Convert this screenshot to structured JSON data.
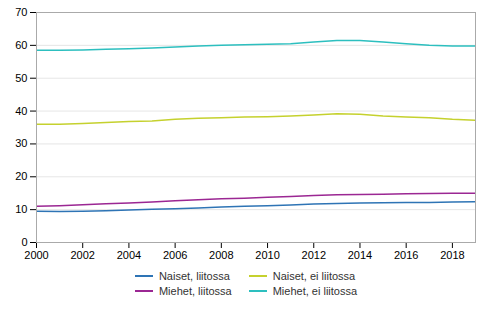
{
  "chart_data": {
    "type": "line",
    "x": [
      2000,
      2001,
      2002,
      2003,
      2004,
      2005,
      2006,
      2007,
      2008,
      2009,
      2010,
      2011,
      2012,
      2013,
      2014,
      2015,
      2016,
      2017,
      2018,
      2019
    ],
    "series": [
      {
        "name": "Naiset, liitossa",
        "color": "#2e74b5",
        "values": [
          9.5,
          9.4,
          9.5,
          9.7,
          9.9,
          10.1,
          10.3,
          10.5,
          10.8,
          11.0,
          11.2,
          11.4,
          11.7,
          11.9,
          12.0,
          12.1,
          12.2,
          12.2,
          12.3,
          12.4
        ]
      },
      {
        "name": "Naiset, ei liitossa",
        "color": "#c5d12e",
        "values": [
          36.0,
          36.0,
          36.2,
          36.5,
          36.8,
          37.0,
          37.5,
          37.8,
          38.0,
          38.2,
          38.3,
          38.5,
          38.8,
          39.2,
          39.0,
          38.5,
          38.2,
          38.0,
          37.5,
          37.2
        ]
      },
      {
        "name": "Miehet, liitossa",
        "color": "#9b2793",
        "values": [
          11.0,
          11.2,
          11.5,
          11.8,
          12.0,
          12.3,
          12.7,
          13.0,
          13.3,
          13.5,
          13.8,
          14.0,
          14.3,
          14.5,
          14.6,
          14.7,
          14.8,
          14.9,
          15.0,
          15.0
        ]
      },
      {
        "name": "Miehet, ei liitossa",
        "color": "#2dbfbf",
        "values": [
          58.5,
          58.5,
          58.6,
          58.8,
          59.0,
          59.2,
          59.5,
          59.8,
          60.0,
          60.2,
          60.3,
          60.5,
          61.0,
          61.5,
          61.5,
          61.0,
          60.5,
          60.0,
          59.8,
          59.8
        ]
      }
    ],
    "xlim": [
      2000,
      2019
    ],
    "xticks": [
      2000,
      2002,
      2004,
      2006,
      2008,
      2010,
      2012,
      2014,
      2016,
      2018
    ],
    "ylim": [
      0,
      70
    ],
    "yticks": [
      0,
      10,
      20,
      30,
      40,
      50,
      60,
      70
    ],
    "grid": true,
    "legend": "bottom"
  }
}
